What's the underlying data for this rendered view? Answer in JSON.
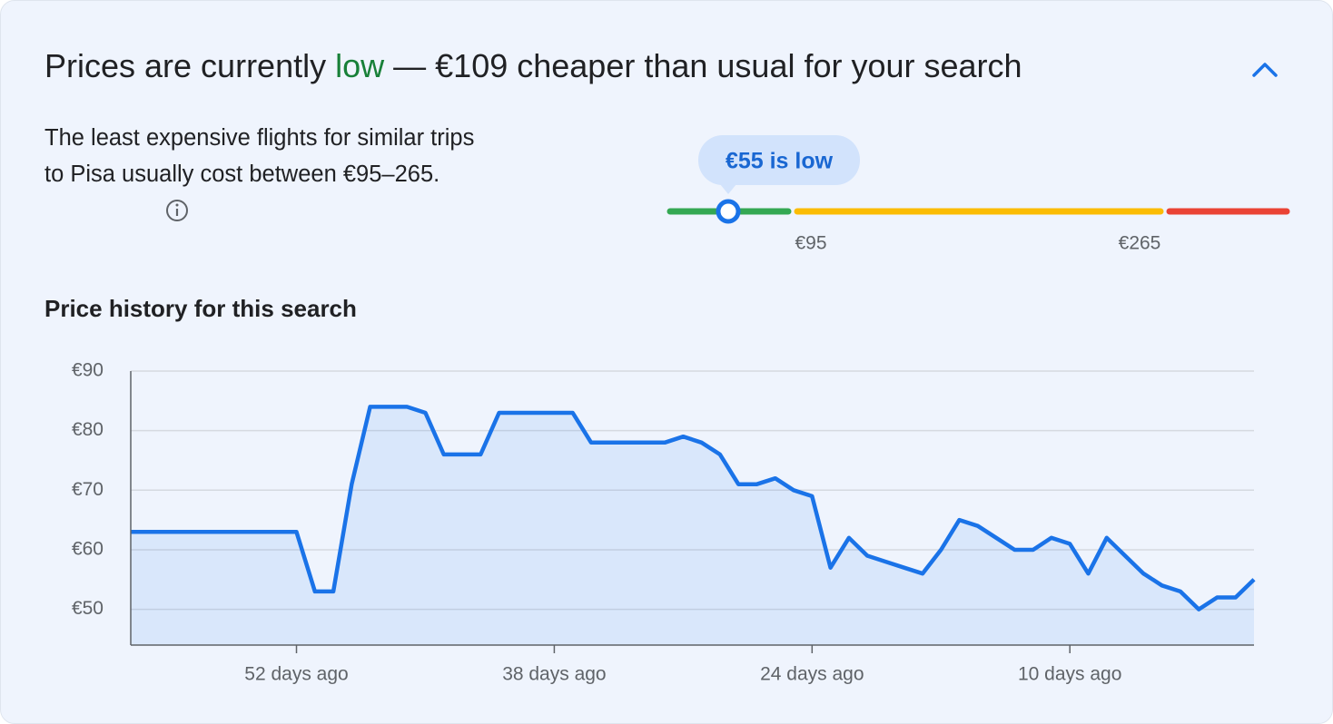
{
  "header": {
    "title_start": "Prices are currently ",
    "title_level": "low",
    "title_end": " — €109 cheaper than usual for your search"
  },
  "summary": "The least expensive flights for similar trips to Pisa usually cost between €95–265.",
  "range": {
    "marker_label": "€55 is low",
    "low_label": "€95",
    "high_label": "€265"
  },
  "chart_data": {
    "type": "line",
    "title": "Price history for this search",
    "x": [
      61,
      60,
      59,
      58,
      57,
      56,
      55,
      54,
      53,
      52,
      51,
      50,
      49,
      48,
      47,
      46,
      45,
      44,
      43,
      42,
      41,
      40,
      39,
      38,
      37,
      36,
      35,
      34,
      33,
      32,
      31,
      30,
      29,
      28,
      27,
      26,
      25,
      24,
      23,
      22,
      21,
      20,
      19,
      18,
      17,
      16,
      15,
      14,
      13,
      12,
      11,
      10,
      9,
      8,
      7,
      6,
      5,
      4,
      3,
      2,
      1,
      0
    ],
    "values": [
      63,
      63,
      63,
      63,
      63,
      63,
      63,
      63,
      63,
      63,
      53,
      53,
      71,
      84,
      84,
      84,
      83,
      76,
      76,
      76,
      83,
      83,
      83,
      83,
      83,
      78,
      78,
      78,
      78,
      78,
      79,
      78,
      76,
      71,
      71,
      72,
      70,
      69,
      57,
      62,
      59,
      58,
      57,
      56,
      60,
      65,
      64,
      62,
      60,
      60,
      62,
      61,
      56,
      62,
      59,
      56,
      54,
      53,
      50,
      52,
      52,
      55
    ],
    "color": "#1a73e8",
    "xlim": [
      61,
      0
    ],
    "xticks": [
      {
        "value": 52,
        "label": "52 days ago"
      },
      {
        "value": 38,
        "label": "38 days ago"
      },
      {
        "value": 24,
        "label": "24 days ago"
      },
      {
        "value": 10,
        "label": "10 days ago"
      }
    ],
    "ylim": [
      44,
      90
    ],
    "yticks": [
      {
        "value": 50,
        "label": "€50"
      },
      {
        "value": 60,
        "label": "€60"
      },
      {
        "value": 70,
        "label": "€70"
      },
      {
        "value": 80,
        "label": "€80"
      },
      {
        "value": 90,
        "label": "€90"
      }
    ],
    "grid": true
  }
}
